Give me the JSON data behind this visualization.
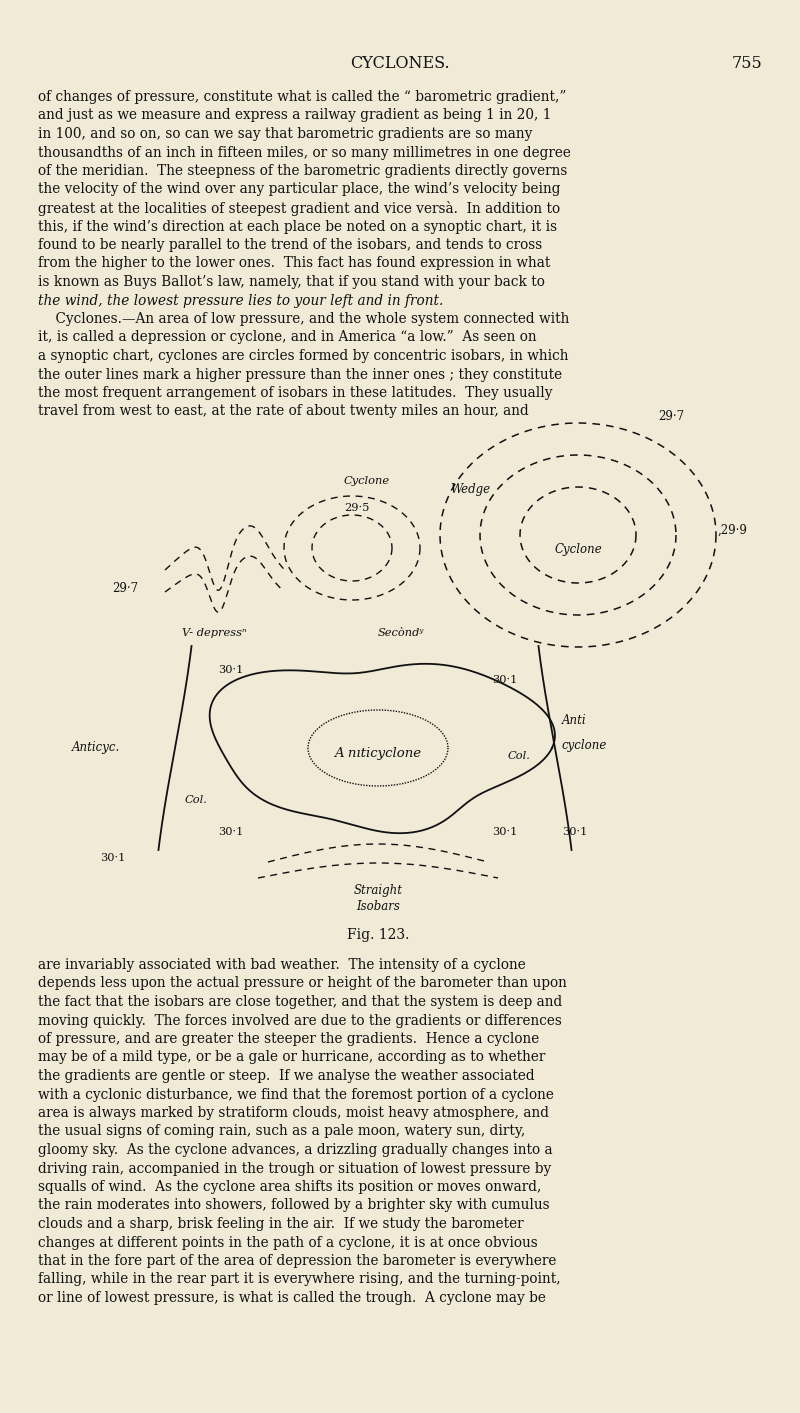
{
  "background_color": "#f0ead6",
  "text_color": "#1a1a1a",
  "page_title": "CYCLONES.",
  "page_number": "755",
  "fig_caption": "Fig. 123.",
  "body_text": [
    "of changes of pressure, constitute what is called the “ barometric gradient,”",
    "and just as we measure and express a railway gradient as being 1 in 20, 1",
    "in 100, and so on, so can we say that barometric gradients are so many",
    "thousandths of an inch in fifteen miles, or so many millimetres in one degree",
    "of the meridian.  The steepness of the barometric gradients directly governs",
    "the velocity of the wind over any particular place, the wind’s velocity being",
    "greatest at the localities of steepest gradient and vice versà.  In addition to",
    "this, if the wind’s direction at each place be noted on a synoptic chart, it is",
    "found to be nearly parallel to the trend of the isobars, and tends to cross",
    "from the higher to the lower ones.  This fact has found expression in what",
    "is known as Buys Ballot’s law, namely, that if you stand with your back to",
    "the wind, the lowest pressure lies to your left and in front.",
    "    Cyclones.—An area of low pressure, and the whole system connected with",
    "it, is called a depression or cyclone, and in America “a low.”  As seen on",
    "a synoptic chart, cyclones are circles formed by concentric isobars, in which",
    "the outer lines mark a higher pressure than the inner ones ; they constitute",
    "the most frequent arrangement of isobars in these latitudes.  They usually",
    "travel from west to east, at the rate of about twenty miles an hour, and"
  ],
  "body_text2": [
    "are invariably associated with bad weather.  The intensity of a cyclone",
    "depends less upon the actual pressure or height of the barometer than upon",
    "the fact that the isobars are close together, and that the system is deep and",
    "moving quickly.  The forces involved are due to the gradients or differences",
    "of pressure, and are greater the steeper the gradients.  Hence a cyclone",
    "may be of a mild type, or be a gale or hurricane, according as to whether",
    "the gradients are gentle or steep.  If we analyse the weather associated",
    "with a cyclonic disturbance, we find that the foremost portion of a cyclone",
    "area is always marked by stratiform clouds, moist heavy atmosphere, and",
    "the usual signs of coming rain, such as a pale moon, watery sun, dirty,",
    "gloomy sky.  As the cyclone advances, a drizzling gradually changes into a",
    "driving rain, accompanied in the trough or situation of lowest pressure by",
    "squalls of wind.  As the cyclone area shifts its position or moves onward,",
    "the rain moderates into showers, followed by a brighter sky with cumulus",
    "clouds and a sharp, brisk feeling in the air.  If we study the barometer",
    "changes at different points in the path of a cyclone, it is at once obvious",
    "that in the fore part of the area of depression the barometer is everywhere",
    "falling, while in the rear part it is everywhere rising, and the turning-point,",
    "or line of lowest pressure, is what is called the trough.  A cyclone may be"
  ],
  "italic_line_indices": [
    11
  ],
  "cyclones_heading_index": 12
}
